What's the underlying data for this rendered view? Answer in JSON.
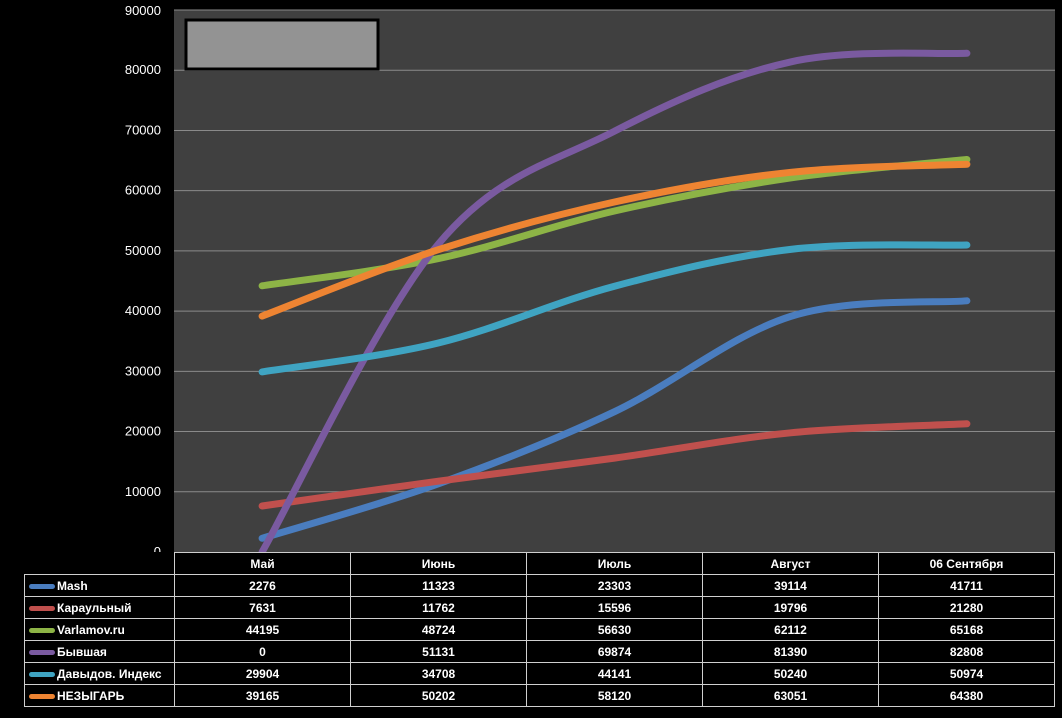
{
  "chart_data": {
    "type": "line",
    "categories": [
      "Май",
      "Июнь",
      "Июль",
      "Август",
      "06 Сентября"
    ],
    "ylim": [
      0,
      90000
    ],
    "yticks": [
      0,
      10000,
      20000,
      30000,
      40000,
      50000,
      60000,
      70000,
      80000,
      90000
    ],
    "grid": true,
    "legend": "data-table",
    "series": [
      {
        "name": "Mash",
        "color": "#4a7dbf",
        "values": [
          2276,
          11323,
          23303,
          39114,
          41711
        ]
      },
      {
        "name": "Караульный",
        "color": "#c0504d",
        "values": [
          7631,
          11762,
          15596,
          19796,
          21280
        ]
      },
      {
        "name": "Varlamov.ru",
        "color": "#8db446",
        "values": [
          44195,
          48724,
          56630,
          62112,
          65168
        ]
      },
      {
        "name": "Бывшая",
        "color": "#7a5aa0",
        "values": [
          0,
          51131,
          69874,
          81390,
          82808
        ]
      },
      {
        "name": "Давыдов. Индекс",
        "color": "#3fa4c2",
        "values": [
          29904,
          34708,
          44141,
          50240,
          50974
        ]
      },
      {
        "name": "НЕЗЫГАРЬ",
        "color": "#ee8432",
        "values": [
          39165,
          50202,
          58120,
          63051,
          64380
        ]
      }
    ]
  }
}
